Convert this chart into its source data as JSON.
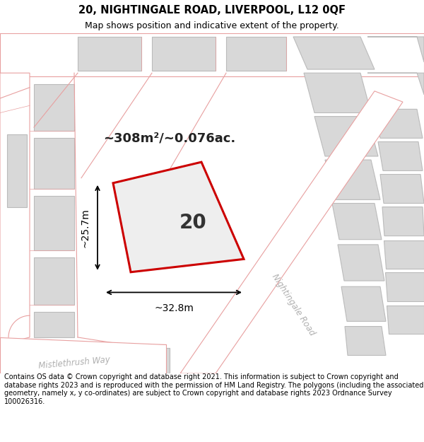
{
  "title": "20, NIGHTINGALE ROAD, LIVERPOOL, L12 0QF",
  "subtitle": "Map shows position and indicative extent of the property.",
  "footer": "Contains OS data © Crown copyright and database right 2021. This information is subject to Crown copyright and database rights 2023 and is reproduced with the permission of HM Land Registry. The polygons (including the associated geometry, namely x, y co-ordinates) are subject to Crown copyright and database rights 2023 Ordnance Survey 100026316.",
  "area_label": "~308m²/~0.076ac.",
  "width_label": "~32.8m",
  "height_label": "~25.7m",
  "number_label": "20",
  "bg_color": "#ffffff",
  "map_bg_color": "#f0f0f0",
  "road_stroke_color": "#e8a0a0",
  "building_fill_color": "#d8d8d8",
  "building_stroke_color": "#bbbbbb",
  "highlight_fill_color": "#eeeeee",
  "highlight_stroke_color": "#cc0000",
  "title_fontsize": 10.5,
  "subtitle_fontsize": 9,
  "footer_fontsize": 7.0,
  "number_fontsize": 20,
  "area_fontsize": 13,
  "dim_fontsize": 10
}
